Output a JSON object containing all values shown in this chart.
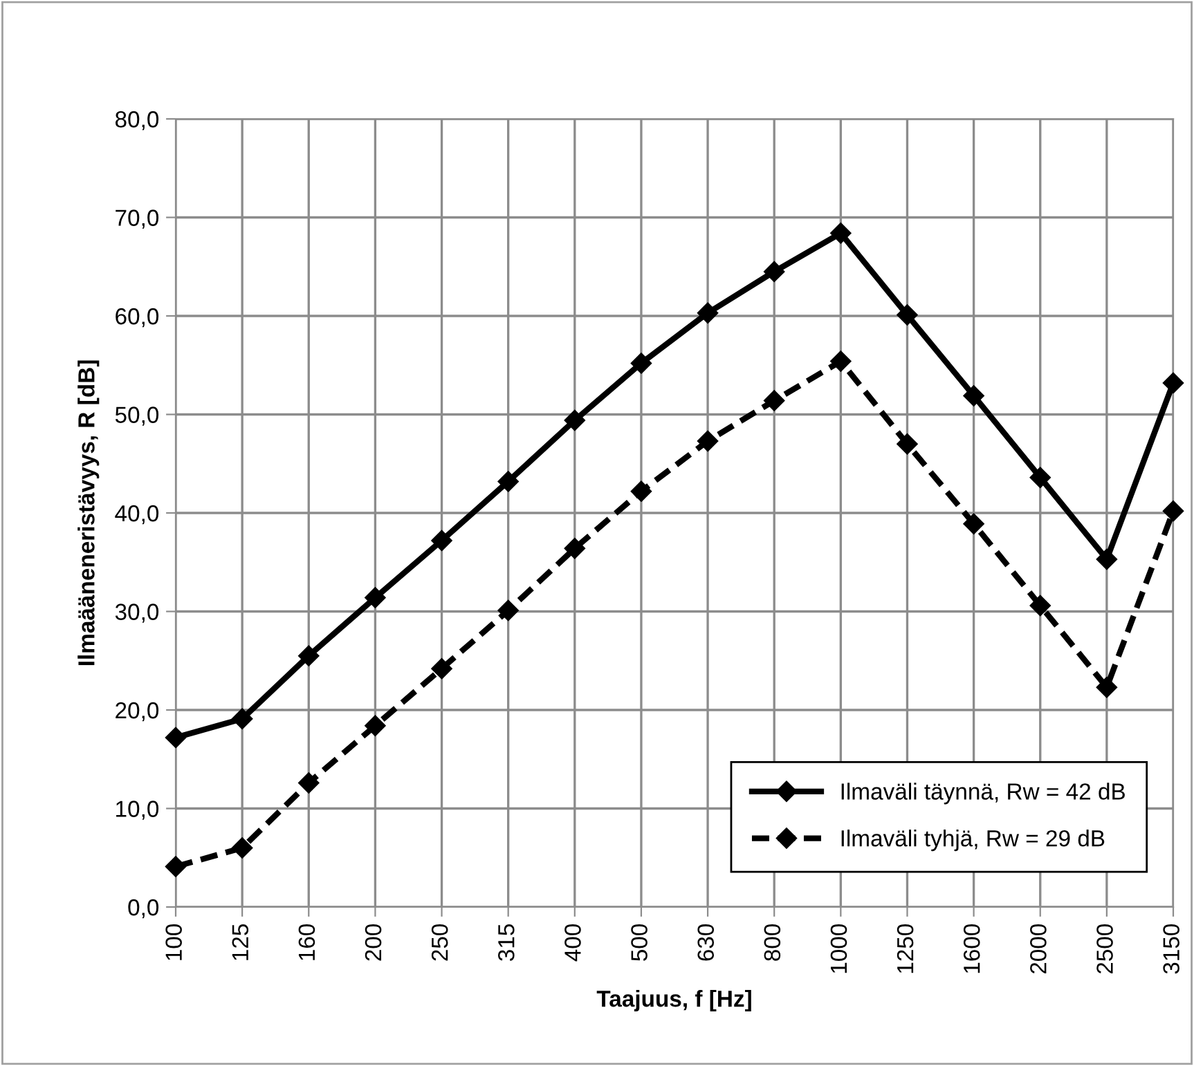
{
  "chart_data": {
    "type": "line",
    "xlabel": "Taajuus, f [Hz]",
    "ylabel": "Ilmaääneneristävyys, R [dB]",
    "categories": [
      "100",
      "125",
      "160",
      "200",
      "250",
      "315",
      "400",
      "500",
      "630",
      "800",
      "1000",
      "1250",
      "1600",
      "2000",
      "2500",
      "3150"
    ],
    "series": [
      {
        "name": "Ilmaväli täynnä, Rw = 42 dB",
        "color": "#000000",
        "line_style": "solid",
        "values": [
          17.2,
          19.1,
          25.5,
          31.4,
          37.2,
          43.2,
          49.4,
          55.2,
          60.3,
          64.5,
          68.4,
          60.1,
          51.9,
          43.6,
          35.3,
          53.2
        ]
      },
      {
        "name": "Ilmaväli tyhjä, Rw = 29 dB",
        "color": "#000000",
        "line_style": "dashed",
        "values": [
          4.1,
          6.0,
          12.6,
          18.4,
          24.2,
          30.1,
          36.4,
          42.2,
          47.3,
          51.4,
          55.4,
          47.0,
          38.9,
          30.6,
          22.3,
          40.2
        ]
      }
    ],
    "ylim": [
      0,
      80
    ],
    "yticks": [
      {
        "value": 0,
        "label": "0,0"
      },
      {
        "value": 10,
        "label": "10,0"
      },
      {
        "value": 20,
        "label": "20,0"
      },
      {
        "value": 30,
        "label": "30,0"
      },
      {
        "value": 40,
        "label": "40,0"
      },
      {
        "value": 50,
        "label": "50,0"
      },
      {
        "value": 60,
        "label": "60,0"
      },
      {
        "value": 70,
        "label": "70,0"
      },
      {
        "value": 80,
        "label": "80,0"
      }
    ],
    "grid": true,
    "legend": "bottom right",
    "marker": "diamond"
  }
}
